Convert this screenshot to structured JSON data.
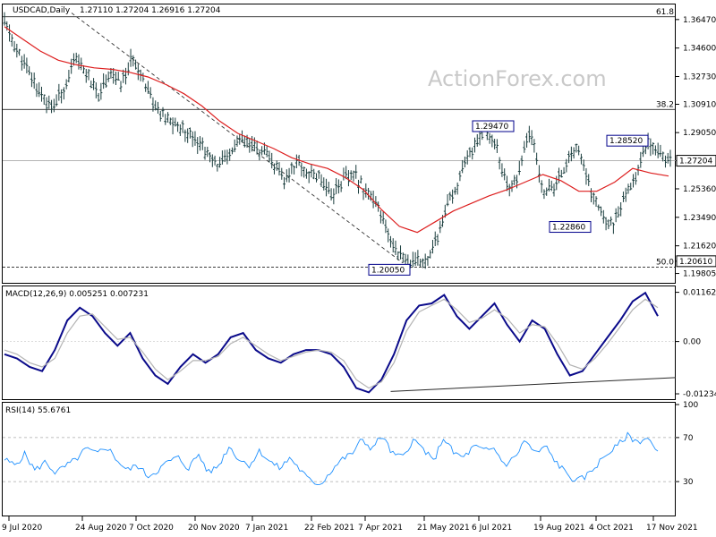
{
  "main_header": {
    "symbol": "USDCAD,Daily",
    "ohlc": "1.27110 1.27204 1.26916 1.27204"
  },
  "watermark": "ActionForex.com",
  "macd_header": "MACD(12,26,9) 0.005251 0.007231",
  "rsi_header": "RSI(14) 55.6761",
  "colors": {
    "ma": "#dd1e1e",
    "macd": "#0a0a8a",
    "signal": "#b4b4b4",
    "price": "#1a3d3d",
    "grid": "#999999",
    "trend": "#2a2a2a"
  },
  "chart_data": [
    {
      "type": "bar",
      "series_name": "USDCAD",
      "ylim": [
        1.1925,
        1.374
      ],
      "ticks": [
        "1.36470",
        "1.34600",
        "1.32730",
        "1.30910",
        "1.29050",
        "1.27204",
        "1.25360",
        "1.23490",
        "1.21620",
        "1.20610",
        "1.19805"
      ],
      "fib_levels": [
        {
          "label": "61.8",
          "value": 1.3665
        },
        {
          "label": "38.2",
          "value": 1.3057
        },
        {
          "label": "50.0",
          "value": 1.2022
        }
      ],
      "last_price": {
        "label": "1.27204",
        "value": 1.27204
      },
      "fib50_tag": {
        "label": "1.20610",
        "value": 1.2061
      },
      "annotations": [
        {
          "label": "1.29470",
          "value": 1.2947,
          "date": "15 Jul 2021"
        },
        {
          "label": "1.28520",
          "value": 1.2852,
          "date": "19 Nov 2021"
        },
        {
          "label": "1.22860",
          "value": 1.2286,
          "date": "21 Oct 2021"
        },
        {
          "label": "1.20050",
          "value": 1.2005,
          "date": "1 Jun 2021"
        }
      ],
      "path": [
        1.363,
        1.345,
        1.331,
        1.318,
        1.306,
        1.318,
        1.338,
        1.33,
        1.315,
        1.33,
        1.322,
        1.34,
        1.325,
        1.305,
        1.298,
        1.294,
        1.29,
        1.28,
        1.27,
        1.272,
        1.285,
        1.282,
        1.278,
        1.27,
        1.258,
        1.272,
        1.264,
        1.262,
        1.25,
        1.26,
        1.262,
        1.252,
        1.24,
        1.22,
        1.21,
        1.204,
        1.207,
        1.22,
        1.244,
        1.26,
        1.279,
        1.293,
        1.285,
        1.254,
        1.262,
        1.294,
        1.254,
        1.252,
        1.27,
        1.282,
        1.256,
        1.238,
        1.23,
        1.245,
        1.262,
        1.285,
        1.28,
        1.272
      ],
      "ma": [
        1.36,
        1.352,
        1.344,
        1.338,
        1.335,
        1.333,
        1.332,
        1.33,
        1.327,
        1.322,
        1.316,
        1.308,
        1.298,
        1.29,
        1.285,
        1.28,
        1.274,
        1.27,
        1.267,
        1.261,
        1.253,
        1.24,
        1.229,
        1.225,
        1.232,
        1.239,
        1.244,
        1.249,
        1.253,
        1.258,
        1.263,
        1.259,
        1.252,
        1.252,
        1.258,
        1.267,
        1.264,
        1.262
      ]
    },
    {
      "type": "line",
      "ylim": [
        -0.0134,
        0.0126
      ],
      "ticks": [
        "0.011629",
        "0.00",
        "-0.012348"
      ],
      "series": [
        {
          "name": "MACD",
          "values": [
            -0.003,
            -0.004,
            -0.006,
            -0.007,
            -0.002,
            0.005,
            0.008,
            0.006,
            0.002,
            -0.001,
            0.002,
            -0.004,
            -0.008,
            -0.01,
            -0.006,
            -0.003,
            -0.005,
            -0.003,
            0.001,
            0.002,
            -0.002,
            -0.004,
            -0.005,
            -0.003,
            -0.002,
            -0.002,
            -0.003,
            -0.006,
            -0.011,
            -0.012,
            -0.009,
            -0.003,
            0.005,
            0.0085,
            0.009,
            0.011,
            0.006,
            0.003,
            0.006,
            0.009,
            0.004,
            0.0,
            0.005,
            0.003,
            -0.003,
            -0.008,
            -0.007,
            -0.003,
            0.001,
            0.005,
            0.0095,
            0.0115,
            0.006
          ]
        },
        {
          "name": "Signal",
          "values": [
            -0.002,
            -0.003,
            -0.005,
            -0.006,
            -0.004,
            0.002,
            0.006,
            0.0065,
            0.0035,
            0.0005,
            0.001,
            -0.0025,
            -0.0065,
            -0.009,
            -0.007,
            -0.0045,
            -0.0045,
            -0.0035,
            -0.0005,
            0.001,
            -0.001,
            -0.003,
            -0.0045,
            -0.0035,
            -0.0025,
            -0.002,
            -0.0025,
            -0.0045,
            -0.009,
            -0.011,
            -0.0095,
            -0.005,
            0.0025,
            0.007,
            0.0085,
            0.01,
            0.0075,
            0.0045,
            0.0055,
            0.0075,
            0.0055,
            0.002,
            0.004,
            0.0035,
            -0.0005,
            -0.0055,
            -0.0065,
            -0.004,
            -0.0005,
            0.0035,
            0.0075,
            0.01,
            0.008
          ]
        }
      ],
      "trendline": [
        [
          -0.0118,
          0.0
        ],
        [
          -0.0085,
          1.0
        ]
      ]
    },
    {
      "type": "line",
      "ylim": [
        0,
        100
      ],
      "ticks": [
        "100",
        "70",
        "30"
      ],
      "levels": [
        70,
        30
      ],
      "values": [
        50,
        45,
        55,
        40,
        48,
        38,
        44,
        50,
        60,
        55,
        62,
        50,
        40,
        45,
        35,
        40,
        48,
        52,
        42,
        55,
        38,
        45,
        62,
        50,
        45,
        58,
        48,
        42,
        52,
        40,
        30,
        28,
        40,
        50,
        55,
        68,
        60,
        72,
        55,
        52,
        68,
        60,
        48,
        70,
        56,
        52,
        62,
        58,
        60,
        45,
        52,
        68,
        55,
        62,
        48,
        38,
        30,
        35,
        45,
        55,
        62,
        72,
        66,
        70,
        55
      ]
    }
  ],
  "x_axis": {
    "labels": [
      "9 Jul 2020",
      "24 Aug 2020",
      "7 Oct 2020",
      "20 Nov 2020",
      "7 Jan 2021",
      "22 Feb 2021",
      "7 Apr 2021",
      "21 May 2021",
      "6 Jul 2021",
      "19 Aug 2021",
      "4 Oct 2021",
      "17 Nov 2021"
    ]
  }
}
